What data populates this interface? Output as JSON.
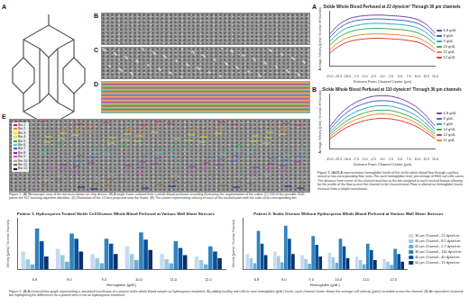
{
  "panel_labels": {
    "schematic": "A",
    "frame": "B",
    "points": "C",
    "bins": "D",
    "arrows": "E"
  },
  "bin_legend": [
    "Bin 1",
    "Bin 2",
    "Bin 3",
    "Bin 4",
    "Bin 5",
    "Bin 6",
    "Bin 7",
    "Bin 8",
    "Bin 9",
    "Bin 10",
    "Bin 11",
    "Bin 12"
  ],
  "bin_colors": [
    "#e6194b",
    "#f58231",
    "#ffe119",
    "#bfef45",
    "#3cb44b",
    "#42d4f4",
    "#4363d8",
    "#911eb4",
    "#f032e6",
    "#a9a9a9",
    "#9a6324",
    "#000075"
  ],
  "figure3_panels": [
    "A",
    "B"
  ],
  "captions": {
    "figure1": "Figure 1: (A) Microscopic view of the microcirculation-on-chip device. (B) A single frame isolated from a whole blood perfusion recording illustrating the segmentation of the video. (C) 100 of the possible 3141 points the KLT tracking algorithm identifies. (D) Illustration of the 12 bins projected onto the frame. (E) The arrows representing velocity of each of the tracked point with the color of its corresponding bin.",
    "figure3": "Figure 3: (A&B) A representative hemoglobin levels of the sickle whole blood flow through capillary vessel at two corresponding flow rates. For each hemoglobin level, percentage of HbS red cells varies. The distance from center of the channel matches to the bin assigned to each tracked feature allowing for the profile of the flow across the channel to be characterized. Flow is altered as hemoglobin levels increase from a simple transfusion.",
    "figure2": "Figure 2: (A) A clustered bar graph representing a simulated transfusion of a patient sickle whole blood sample on hydroxyurea treatment. By adding healthy red cells to raise hemoglobin (g/dL) levels, each channel cluster shows the average cell velocity (µm/s) recorded across the channel. (B) An equivalent clustered bar highlighting the differences for a patient who is not on hydroxyurea treatment."
  },
  "chart_data": [
    {
      "type": "line",
      "title": "Sickle Whole Blood Perfused at 22 dyne/cm² Through 30 µm channels",
      "x_label": "Distance From Channel Center (µm)",
      "y_label": "Average Velocity (px/s) / Inverse of Viscosity",
      "x": [
        -15,
        -12.5,
        -10,
        -7.5,
        -5,
        -2.5,
        0,
        2.5,
        5,
        7.5,
        10,
        12.5,
        15
      ],
      "xlim": [
        -15,
        15
      ],
      "xticks": [
        {
          "value": -15,
          "label": "-15.0"
        },
        {
          "value": -12.5,
          "label": "-12.5"
        },
        {
          "value": -10,
          "label": "-10.0"
        },
        {
          "value": -7.5,
          "label": "-7.5"
        },
        {
          "value": -5,
          "label": "-5.0"
        },
        {
          "value": -2.5,
          "label": "-2.5"
        },
        {
          "value": 0,
          "label": "0.0"
        },
        {
          "value": 2.5,
          "label": "2.5"
        },
        {
          "value": 5,
          "label": "5.0"
        },
        {
          "value": 7.5,
          "label": "7.5"
        },
        {
          "value": 10,
          "label": "10.0"
        },
        {
          "value": 12.5,
          "label": "12.5"
        },
        {
          "value": 15,
          "label": "15.0"
        }
      ],
      "ylim": [
        0,
        100
      ],
      "tick_labels": "x",
      "grid": false,
      "legend": "right",
      "series": [
        {
          "name": "6.8 g/dL",
          "color": "#7b3fa0",
          "values": [
            58,
            75,
            85,
            90,
            92,
            93,
            93,
            92,
            91,
            89,
            85,
            76,
            60
          ]
        },
        {
          "name": "8 g/dL",
          "color": "#3a62c9",
          "values": [
            52,
            68,
            78,
            83,
            85,
            86,
            86,
            85,
            84,
            82,
            78,
            69,
            54
          ]
        },
        {
          "name": "9 g/dL",
          "color": "#2aa6c8",
          "values": [
            45,
            60,
            70,
            74,
            77,
            78,
            78,
            77,
            76,
            74,
            70,
            61,
            47
          ]
        },
        {
          "name": "10 g/dL",
          "color": "#3caa4a",
          "values": [
            38,
            52,
            61,
            66,
            68,
            69,
            69,
            68,
            67,
            65,
            61,
            53,
            40
          ]
        },
        {
          "name": "11 g/dL",
          "color": "#f08a24",
          "values": [
            30,
            43,
            52,
            56,
            58,
            59,
            59,
            58,
            57,
            55,
            52,
            44,
            32
          ]
        },
        {
          "name": "12 g/dL",
          "color": "#d83a3a",
          "values": [
            24,
            36,
            44,
            48,
            50,
            51,
            51,
            50,
            49,
            47,
            44,
            37,
            26
          ]
        }
      ]
    },
    {
      "type": "line",
      "title": "Sickle Whole Blood Perfused at 110 dyne/cm² Through 30 µm channels",
      "x_label": "Distance From Channel Center (µm)",
      "y_label": "Average Velocity (px/s) / Inverse of Viscosity",
      "x": [
        -15,
        -12.5,
        -10,
        -7.5,
        -5,
        -2.5,
        0,
        2.5,
        5,
        7.5,
        10,
        12.5,
        15
      ],
      "xlim": [
        -15,
        15
      ],
      "xticks": [
        {
          "value": -15,
          "label": "-15.0"
        },
        {
          "value": -12.5,
          "label": "-12.5"
        },
        {
          "value": -10,
          "label": "-10.0"
        },
        {
          "value": -7.5,
          "label": "-7.5"
        },
        {
          "value": -5,
          "label": "-5.0"
        },
        {
          "value": -2.5,
          "label": "-2.5"
        },
        {
          "value": 0,
          "label": "0.0"
        },
        {
          "value": 2.5,
          "label": "2.5"
        },
        {
          "value": 5,
          "label": "5.0"
        },
        {
          "value": 7.5,
          "label": "7.5"
        },
        {
          "value": 10,
          "label": "10.0"
        },
        {
          "value": 12.5,
          "label": "12.5"
        },
        {
          "value": 15,
          "label": "15.0"
        }
      ],
      "ylim": [
        0,
        100
      ],
      "tick_labels": "x",
      "grid": false,
      "legend": "right",
      "series": [
        {
          "name": "6.8 g/dL",
          "color": "#7b3fa0",
          "values": [
            40,
            60,
            75,
            85,
            92,
            96,
            97,
            96,
            92,
            85,
            75,
            60,
            42
          ]
        },
        {
          "name": "8 g/dL",
          "color": "#3a62c9",
          "values": [
            35,
            53,
            67,
            77,
            83,
            87,
            88,
            87,
            83,
            77,
            67,
            53,
            36
          ]
        },
        {
          "name": "9 g/dL",
          "color": "#2aa6c8",
          "values": [
            30,
            46,
            59,
            68,
            74,
            78,
            79,
            78,
            74,
            68,
            59,
            46,
            31
          ]
        },
        {
          "name": "10 g/dL",
          "color": "#3caa4a",
          "values": [
            26,
            40,
            52,
            60,
            66,
            70,
            71,
            70,
            66,
            60,
            52,
            40,
            27
          ]
        },
        {
          "name": "12 g/dL",
          "color": "#d83a3a",
          "values": [
            18,
            30,
            40,
            47,
            52,
            55,
            56,
            55,
            52,
            47,
            40,
            30,
            19
          ]
        },
        {
          "name": "11 g/dL",
          "color": "#f08a24",
          "values": [
            22,
            35,
            46,
            54,
            59,
            63,
            64,
            63,
            59,
            54,
            46,
            35,
            23
          ]
        }
      ]
    },
    {
      "type": "bar",
      "title": "Patient 1: Hydroxyurea Treated Sickle Cell Disease Whole Blood Perfused at Various Wall Shear Stresses",
      "x_label": "Hemoglobin (g/dL)",
      "y_label": "Velocity (µm/s) / Inverse Viscosity",
      "categories": [
        "6.8",
        "8.0",
        "9.0",
        "10.0",
        "11.0",
        "12.0"
      ],
      "ylim": [
        0,
        100
      ],
      "tick_labels": "x",
      "grid": false,
      "series": [
        {
          "name": "30 µm Channel - 22 dyne/cm²",
          "color": "#c6dbef",
          "values": [
            35,
            40,
            30,
            45,
            30,
            25
          ]
        },
        {
          "name": "40 µm Channel - 8.5 dyne/cm²",
          "color": "#9ecae1",
          "values": [
            20,
            28,
            22,
            30,
            20,
            18
          ]
        },
        {
          "name": "60 µm Channel - 2.7 dyne/cm²",
          "color": "#6baed6",
          "values": [
            10,
            15,
            12,
            18,
            12,
            10
          ]
        },
        {
          "name": "30 µm Channel - 110 dyne/cm²",
          "color": "#3182bd",
          "values": [
            80,
            70,
            60,
            72,
            55,
            45
          ]
        },
        {
          "name": "40 µm Channel - 40 dyne/cm²",
          "color": "#08519c",
          "values": [
            55,
            60,
            50,
            58,
            42,
            35
          ]
        },
        {
          "name": "60 µm Channel - 13 dyne/cm²",
          "color": "#08306b",
          "values": [
            25,
            35,
            30,
            38,
            28,
            22
          ]
        }
      ]
    },
    {
      "type": "bar",
      "title": "Patient 2: Sickle Disease Without Hydroxyurea Whole Blood Perfused at Various Wall Shear Stresses",
      "x_label": "Hemoglobin (g/dL)",
      "y_label": "Velocity (µm/s) / Inverse Viscosity",
      "categories": [
        "6.8",
        "8.0",
        "9.0",
        "10.0",
        "11.0",
        "12.0"
      ],
      "ylim": [
        0,
        100
      ],
      "tick_labels": "x",
      "grid": false,
      "legend": "right",
      "series": [
        {
          "name": "30 µm Channel - 22 dyne/cm²",
          "color": "#c6dbef",
          "values": [
            30,
            35,
            28,
            32,
            25,
            20
          ]
        },
        {
          "name": "40 µm Channel - 8.5 dyne/cm²",
          "color": "#9ecae1",
          "values": [
            22,
            26,
            20,
            24,
            18,
            15
          ]
        },
        {
          "name": "60 µm Channel - 2.7 dyne/cm²",
          "color": "#6baed6",
          "values": [
            12,
            14,
            11,
            13,
            10,
            9
          ]
        },
        {
          "name": "30 µm Channel - 110 dyne/cm²",
          "color": "#3182bd",
          "values": [
            75,
            85,
            65,
            60,
            50,
            40
          ]
        },
        {
          "name": "40 µm Channel - 40 dyne/cm²",
          "color": "#08519c",
          "values": [
            50,
            60,
            48,
            45,
            38,
            30
          ]
        },
        {
          "name": "60 µm Channel - 13 dyne/cm²",
          "color": "#08306b",
          "values": [
            28,
            30,
            25,
            22,
            18,
            15
          ]
        }
      ]
    }
  ]
}
